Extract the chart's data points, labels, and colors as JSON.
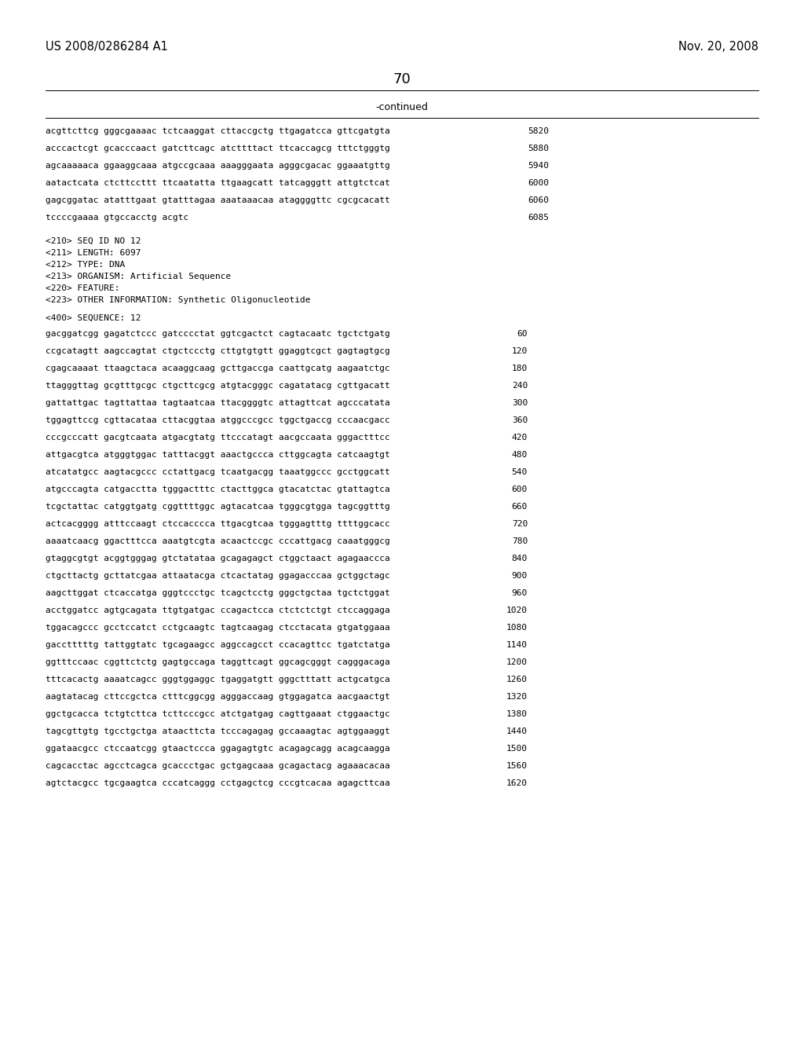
{
  "header_left": "US 2008/0286284 A1",
  "header_right": "Nov. 20, 2008",
  "page_number": "70",
  "continued_label": "-continued",
  "bg_color": "#ffffff",
  "text_color": "#000000",
  "font_size_header": 10.5,
  "font_size_body": 8.0,
  "font_size_page": 13,
  "sequence_lines_top": [
    [
      "acgttcttcg gggcgaaaac tctcaaggat cttaccgctg ttgagatcca gttcgatgta",
      "5820"
    ],
    [
      "acccactcgt gcacccaact gatcttcagc atcttttact ttcaccagcg tttctgggtg",
      "5880"
    ],
    [
      "agcaaaaaca ggaaggcaaa atgccgcaaa aaagggaata agggcgacac ggaaatgttg",
      "5940"
    ],
    [
      "aatactcata ctcttccttt ttcaatatta ttgaagcatt tatcagggtt attgtctcat",
      "6000"
    ],
    [
      "gagcggatac atatttgaat gtatttagaa aaataaacaa ataggggttc cgcgcacatt",
      "6060"
    ],
    [
      "tccccgaaaa gtgccacctg acgtc",
      "6085"
    ]
  ],
  "metadata_lines": [
    "<210> SEQ ID NO 12",
    "<211> LENGTH: 6097",
    "<212> TYPE: DNA",
    "<213> ORGANISM: Artificial Sequence",
    "<220> FEATURE:",
    "<223> OTHER INFORMATION: Synthetic Oligonucleotide"
  ],
  "sequence400_label": "<400> SEQUENCE: 12",
  "sequence_lines_bottom": [
    [
      "gacggatcgg gagatctccc gatcccctat ggtcgactct cagtacaatc tgctctgatg",
      "60"
    ],
    [
      "ccgcatagtt aagccagtat ctgctccctg cttgtgtgtt ggaggtcgct gagtagtgcg",
      "120"
    ],
    [
      "cgagcaaaat ttaagctaca acaaggcaag gcttgaccga caattgcatg aagaatctgc",
      "180"
    ],
    [
      "ttagggttag gcgtttgcgc ctgcttcgcg atgtacgggc cagatatacg cgttgacatt",
      "240"
    ],
    [
      "gattattgac tagttattaa tagtaatcaa ttacggggtc attagttcat agcccatata",
      "300"
    ],
    [
      "tggagttccg cgttacataa cttacggtaa atggcccgcc tggctgaccg cccaacgacc",
      "360"
    ],
    [
      "cccgcccatt gacgtcaata atgacgtatg ttcccatagt aacgccaata gggactttcc",
      "420"
    ],
    [
      "attgacgtca atgggtggac tatttacggt aaactgccca cttggcagta catcaagtgt",
      "480"
    ],
    [
      "atcatatgcc aagtacgccc cctattgacg tcaatgacgg taaatggccc gcctggcatt",
      "540"
    ],
    [
      "atgcccagta catgacctta tgggactttc ctacttggca gtacatctac gtattagtca",
      "600"
    ],
    [
      "tcgctattac catggtgatg cggttttggc agtacatcaa tgggcgtgga tagcggtttg",
      "660"
    ],
    [
      "actcacgggg atttccaagt ctccacccca ttgacgtcaa tgggagtttg ttttggcacc",
      "720"
    ],
    [
      "aaaatcaacg ggactttcca aaatgtcgta acaactccgc cccattgacg caaatgggcg",
      "780"
    ],
    [
      "gtaggcgtgt acggtgggag gtctatataa gcagagagct ctggctaact agagaaccca",
      "840"
    ],
    [
      "ctgcttactg gcttatcgaa attaatacga ctcactatag ggagacccaa gctggctagc",
      "900"
    ],
    [
      "aagcttggat ctcaccatga gggtccctgc tcagctcctg gggctgctaa tgctctggat",
      "960"
    ],
    [
      "acctggatcc agtgcagata ttgtgatgac ccagactcca ctctctctgt ctccaggaga",
      "1020"
    ],
    [
      "tggacagccc gcctccatct cctgcaagtc tagtcaagag ctcctacata gtgatggaaa",
      "1080"
    ],
    [
      "gacctttttg tattggtatc tgcagaagcc aggccagcct ccacagttcc tgatctatga",
      "1140"
    ],
    [
      "ggtttccaac cggttctctg gagtgccaga taggttcagt ggcagcgggt cagggacaga",
      "1200"
    ],
    [
      "tttcacactg aaaatcagcc gggtggaggc tgaggatgtt gggctttatt actgcatgca",
      "1260"
    ],
    [
      "aagtatacag cttccgctca ctttcggcgg agggaccaag gtggagatca aacgaactgt",
      "1320"
    ],
    [
      "ggctgcacca tctgtcttca tcttcccgcc atctgatgag cagttgaaat ctggaactgc",
      "1380"
    ],
    [
      "tagcgttgtg tgcctgctga ataacttcta tcccagagag gccaaagtac agtggaaggt",
      "1440"
    ],
    [
      "ggataacgcc ctccaatcgg gtaactccca ggagagtgtc acagagcagg acagcaagga",
      "1500"
    ],
    [
      "cagcacctac agcctcagca gcaccctgac gctgagcaaa gcagactacg agaaacacaa",
      "1560"
    ],
    [
      "agtctacgcc tgcgaagtca cccatcaggg cctgagctcg cccgtcacaa agagcttcaa",
      "1620"
    ]
  ]
}
